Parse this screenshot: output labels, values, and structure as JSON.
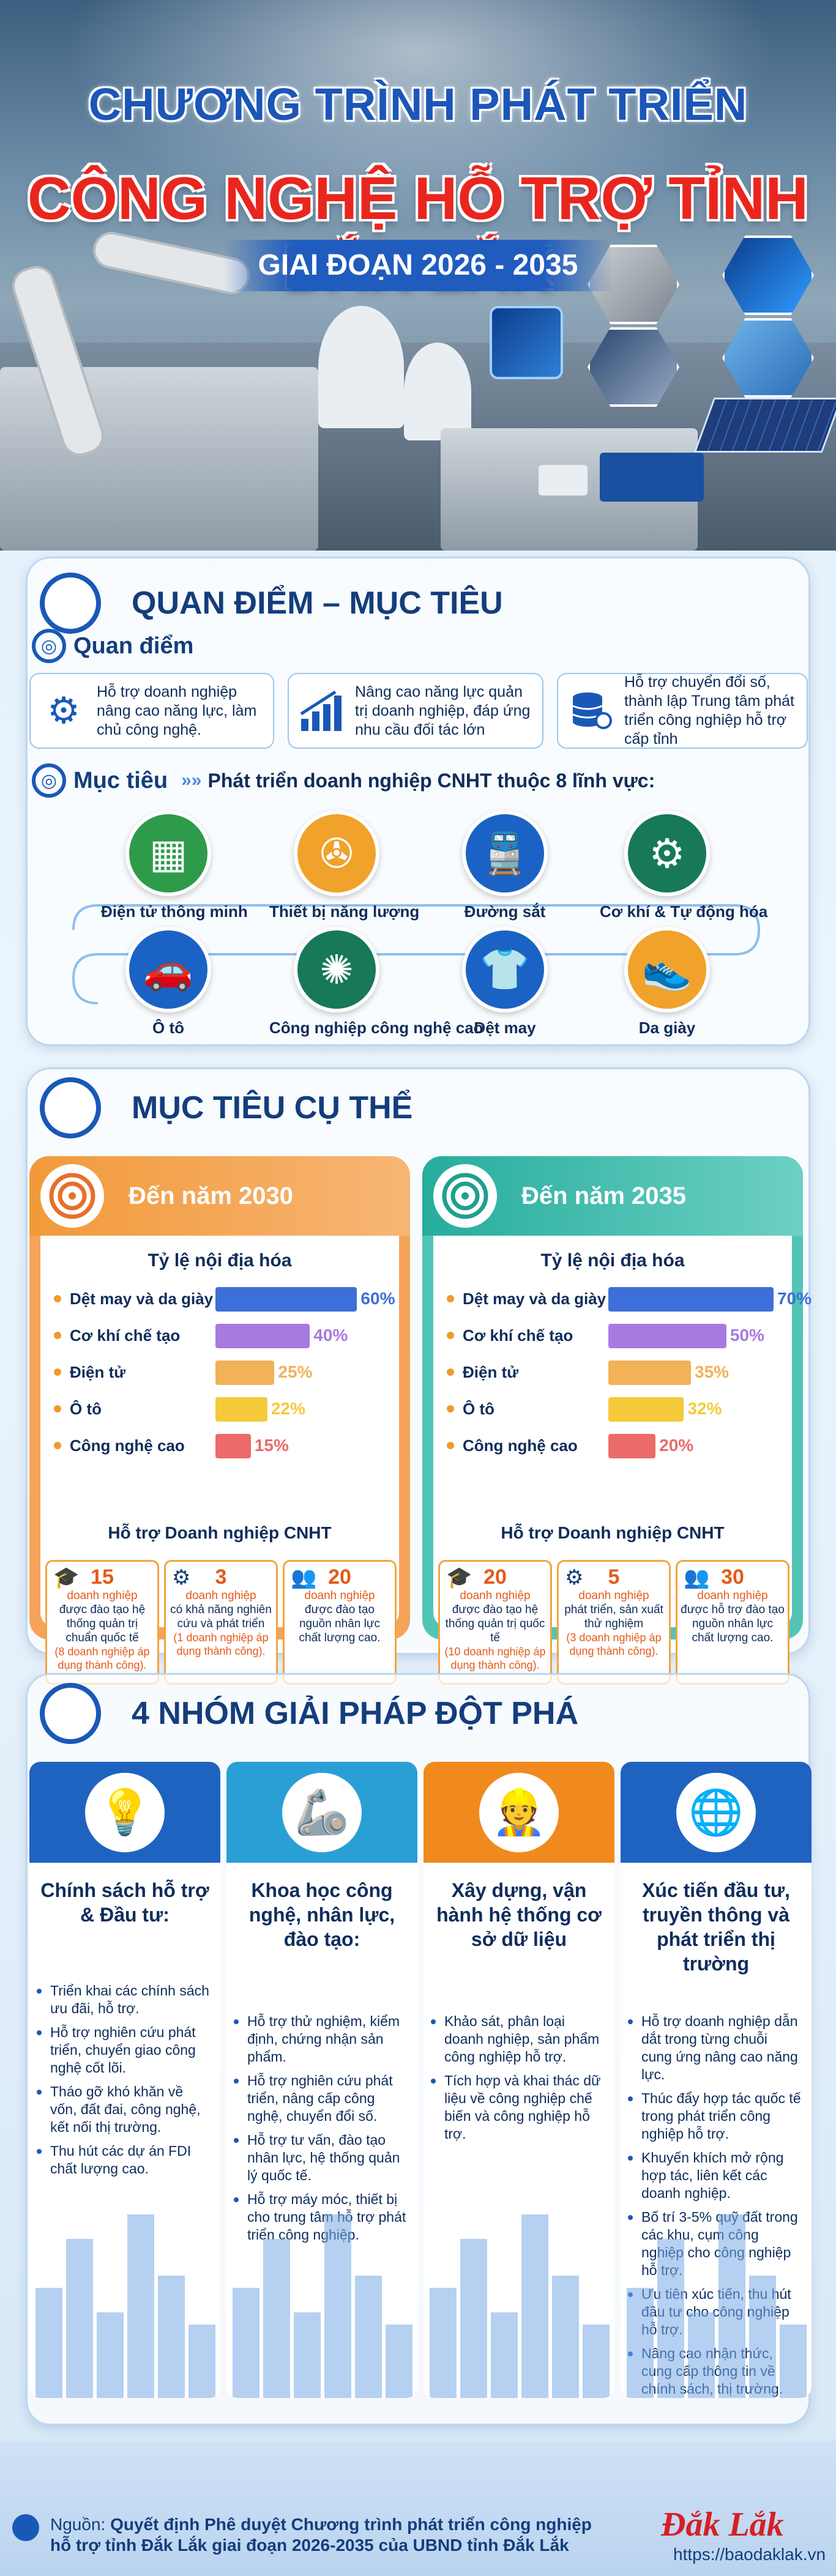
{
  "hero": {
    "line1": "CHƯƠNG TRÌNH PHÁT TRIỂN",
    "line2": "CÔNG NGHỆ HỖ TRỢ TỈNH ĐẮK LẮK",
    "line3": "GIAI ĐOẠN 2026 - 2035"
  },
  "section1": {
    "title": "QUAN ĐIỂM – MỤC TIÊU",
    "quan_diem_label": "Quan điểm",
    "points": [
      {
        "icon": "gear-icon",
        "text": "Hỗ trợ doanh nghiệp nâng cao năng lực, làm chủ công nghệ."
      },
      {
        "icon": "growth-chart-icon",
        "text": "Nâng cao năng lực quản trị doanh nghiệp, đáp ứng nhu cầu đối tác lớn"
      },
      {
        "icon": "database-icon",
        "text": "Hỗ trợ chuyển đổi số, thành lập Trung tâm phát triển công nghiệp hỗ trợ cấp tỉnh"
      }
    ],
    "muc_tieu_label": "Mục tiêu",
    "muc_tieu_text": "Phát triển doanh nghiệp CNHT thuộc 8 lĩnh vực:",
    "sectors": [
      {
        "label": "Điện tử thông minh",
        "icon": "chip-icon",
        "color": "#2e9b4a"
      },
      {
        "label": "Thiết bị năng lượng",
        "icon": "wind-turbine-icon",
        "color": "#f0a22a"
      },
      {
        "label": "Đường sắt",
        "icon": "train-icon",
        "color": "#1a63c4"
      },
      {
        "label": "Cơ khí & Tự động hóa",
        "icon": "robot-arm-icon",
        "color": "#17795a"
      },
      {
        "label": "Ô tô",
        "icon": "car-icon",
        "color": "#1a63c4"
      },
      {
        "label": "Công nghiệp công nghệ cao",
        "icon": "circuit-icon",
        "color": "#17795a"
      },
      {
        "label": "Dệt may",
        "icon": "shirt-icon",
        "color": "#1a63c4"
      },
      {
        "label": "Da giày",
        "icon": "shoe-icon",
        "color": "#f0a22a"
      }
    ]
  },
  "section2": {
    "title": "MỤC TIÊU CỤ THỂ",
    "panels": [
      {
        "header": "Đến năm 2030",
        "color": "#f39a3a",
        "rate_label": "Tỷ lệ nội địa hóa",
        "items": [
          {
            "name": "Dệt may và da giày",
            "value": 60,
            "label": "60%",
            "color": "#3d6fd8"
          },
          {
            "name": "Cơ khí chế tạo",
            "value": 40,
            "label": "40%",
            "color": "#a77ae0"
          },
          {
            "name": "Điện tử",
            "value": 25,
            "label": "25%",
            "color": "#f3b158"
          },
          {
            "name": "Ô tô",
            "value": 22,
            "label": "22%",
            "color": "#f5c93a"
          },
          {
            "name": "Công nghệ cao",
            "value": 15,
            "label": "15%",
            "color": "#ec6a6a"
          }
        ],
        "support_label": "Hỗ trợ Doanh nghiệp CNHT",
        "support": [
          {
            "icon": "graduation-icon",
            "num": "15",
            "unit": "doanh nghiệp",
            "desc": "được đào tạo hệ thống quản trị chuẩn quốc tế",
            "note": "(8 doanh nghiệp áp dụng thành công)."
          },
          {
            "icon": "gear-icon",
            "num": "3",
            "unit": "doanh nghiệp",
            "desc": "có khả năng nghiên cứu và phát triển",
            "note": "(1 doanh nghiệp áp dụng thành công)."
          },
          {
            "icon": "people-icon",
            "num": "20",
            "unit": "doanh nghiệp",
            "desc": "được đào tạo nguồn nhân lực chất lượng cao.",
            "note": ""
          }
        ]
      },
      {
        "header": "Đến năm 2035",
        "color": "#2fb9a8",
        "rate_label": "Tỷ lệ nội địa hóa",
        "items": [
          {
            "name": "Dệt may và da giày",
            "value": 70,
            "label": "70%",
            "color": "#3d6fd8"
          },
          {
            "name": "Cơ khí chế tạo",
            "value": 50,
            "label": "50%",
            "color": "#a77ae0"
          },
          {
            "name": "Điện tử",
            "value": 35,
            "label": "35%",
            "color": "#f3b158"
          },
          {
            "name": "Ô tô",
            "value": 32,
            "label": "32%",
            "color": "#f5c93a"
          },
          {
            "name": "Công nghệ cao",
            "value": 20,
            "label": "20%",
            "color": "#ec6a6a"
          }
        ],
        "support_label": "Hỗ trợ Doanh nghiệp CNHT",
        "support": [
          {
            "icon": "graduation-icon",
            "num": "20",
            "unit": "doanh nghiệp",
            "desc": "được đào tạo hệ thống quản trị quốc tế",
            "note": "(10 doanh nghiệp áp dụng thành công)."
          },
          {
            "icon": "gear-icon",
            "num": "5",
            "unit": "doanh nghiệp",
            "desc": "phát triển, sản xuất thử nghiệm",
            "note": "(3 doanh nghiệp áp dụng thành công)."
          },
          {
            "icon": "people-icon",
            "num": "30",
            "unit": "doanh nghiệp",
            "desc": "được hỗ trợ đào tạo nguồn nhân lực chất lượng cao.",
            "note": ""
          }
        ]
      }
    ]
  },
  "section3": {
    "title": "4 NHÓM GIẢI PHÁP ĐỘT PHÁ",
    "groups": [
      {
        "icon": "lightbulb-icon",
        "color": "#1f63c0",
        "heading": "Chính sách hỗ trợ & Đầu tư:",
        "items": [
          "Triển khai các chính sách ưu đãi, hỗ trợ.",
          "Hỗ trợ nghiên cứu phát triển, chuyển giao công nghệ cốt lõi.",
          "Tháo gỡ khó khăn về vốn, đất đai, công nghệ, kết nối thị trường.",
          "Thu hút các dự án FDI chất lượng cao."
        ]
      },
      {
        "icon": "robot-arm-icon",
        "color": "#2a9fd6",
        "heading": "Khoa học công nghệ, nhân lực, đào tạo:",
        "items": [
          "Hỗ trợ thử nghiệm, kiểm định, chứng nhận sản phẩm.",
          "Hỗ trợ nghiên cứu phát triển, nâng cấp công nghệ, chuyển đổi số.",
          "Hỗ trợ tư vấn, đào tạo nhân lực, hệ thống quản lý quốc tế.",
          "Hỗ trợ máy móc, thiết bị cho trung tâm hỗ trợ phát triển công nghiệp."
        ]
      },
      {
        "icon": "engineer-icon",
        "color": "#f08a1e",
        "heading": "Xây dựng, vận hành hệ thống cơ sở dữ liệu",
        "items": [
          "Khảo sát, phân loại doanh nghiệp, sản phẩm công nghiệp hỗ trợ.",
          "Tích hợp và khai thác dữ liệu về công nghiệp chế biến và công nghiệp hỗ trợ."
        ]
      },
      {
        "icon": "globe-icon",
        "color": "#1f63c0",
        "heading": "Xúc tiến đầu tư, truyền thông và phát triển thị trường",
        "items": [
          "Hỗ trợ doanh nghiệp dẫn dắt trong từng chuỗi cung ứng nâng cao năng lực.",
          "Thúc đẩy hợp tác quốc tế trong phát triển công nghiệp hỗ trợ.",
          "Khuyến khích mở rộng hợp tác, liên kết các doanh nghiệp.",
          "Bố trí 3-5% quỹ đất trong các khu, cụm công nghiệp cho công nghiệp hỗ trợ.",
          "Ưu tiên xúc tiến, thu hút đầu tư cho công nghiệp hỗ trợ.",
          "Nâng cao nhận thức, cung cấp thông tin về chính sách, thị trường."
        ]
      }
    ]
  },
  "footer": {
    "source_label": "Nguồn:",
    "source_text": "Quyết định Phê duyệt Chương trình phát triển công nghiệp hỗ trợ tỉnh Đắk Lắk giai đoạn 2026-2035 của UBND tỉnh Đắk Lắk",
    "logo": "Đắk Lắk",
    "url": "https://baodaklak.vn"
  }
}
